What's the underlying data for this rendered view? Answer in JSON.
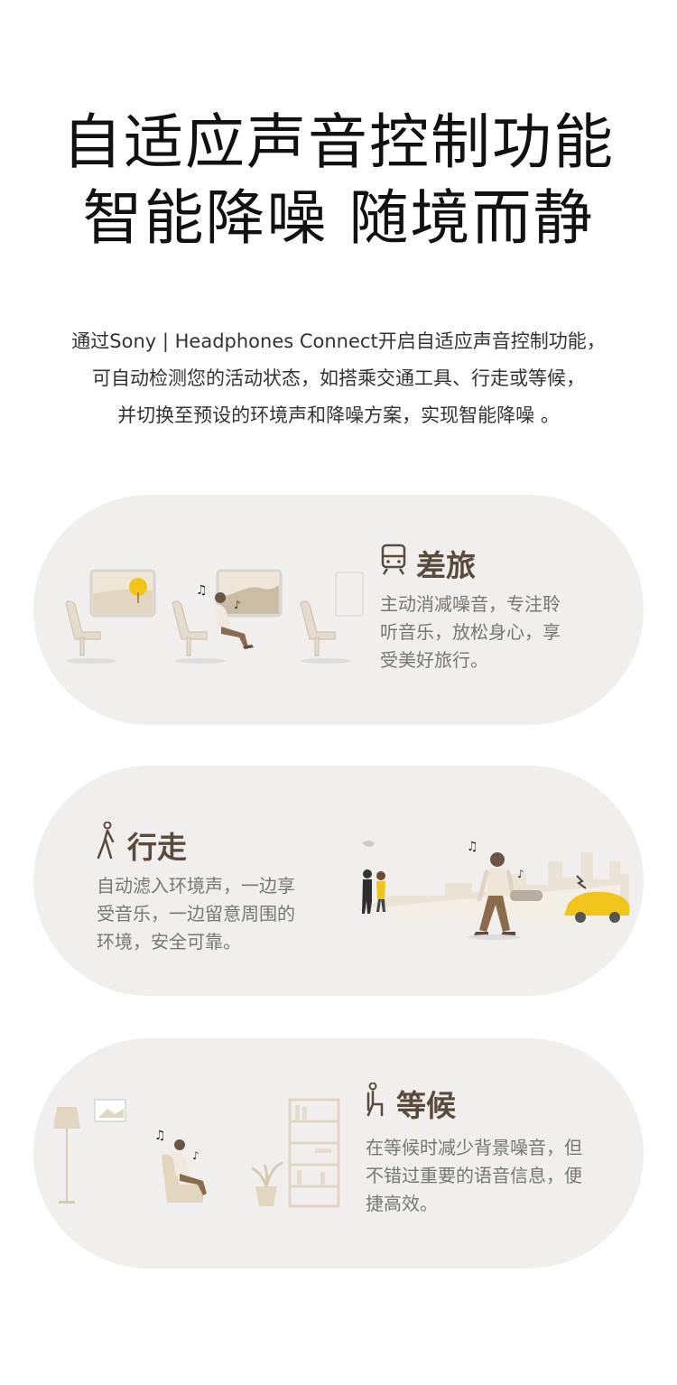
{
  "header": {
    "title_line1": "自适应声音控制功能",
    "title_line2": "智能降噪  随境而静"
  },
  "intro": {
    "line1": "通过Sony | Headphones Connect开启自适应声音控制功能，",
    "line2": "可自动检测您的活动状态，如搭乘交通工具、行走或等候，",
    "line3": "并切换至预设的环境声和降噪方案，实现智能降噪 。"
  },
  "cards": [
    {
      "id": "travel",
      "icon": "train-icon",
      "title": "差旅",
      "desc": [
        "主动消减噪音，专注聆",
        "听音乐，放松身心，享",
        "受美好旅行。"
      ]
    },
    {
      "id": "walking",
      "icon": "walking-person-icon",
      "title": "行走",
      "desc": [
        "自动滤入环境声，一边享",
        "受音乐，一边留意周围的",
        "环境，安全可靠。"
      ]
    },
    {
      "id": "waiting",
      "icon": "seated-person-icon",
      "title": "等候",
      "desc": [
        "在等候时减少背景噪音，但",
        "不错过重要的语音信息，便",
        "捷高效。"
      ]
    }
  ],
  "colors": {
    "card_bg": "#f0efed",
    "title_brown": "#5a4a3b",
    "desc_gray": "#777777",
    "accent_yellow": "#f0c419"
  }
}
